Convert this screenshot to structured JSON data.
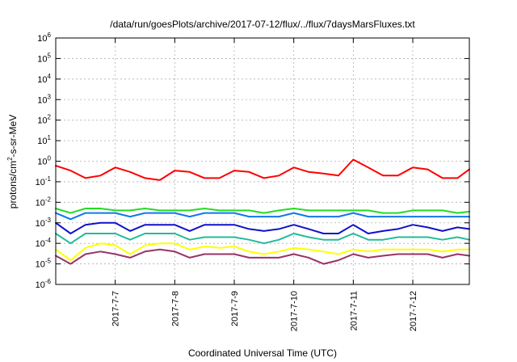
{
  "chart_data": {
    "type": "line",
    "title": "/data/run/goesPlots/archive/2017-07-12/flux/../flux/7daysMarsFluxes.txt",
    "xlabel": "Coordinated Universal Time (UTC)",
    "ylabel": {
      "base": "protons/cm",
      "sup": "2",
      "rest": "-s-sr-MeV"
    },
    "yscale": "log",
    "ylim_exp": [
      -6,
      6
    ],
    "y_tick_exponents": [
      6,
      5,
      4,
      3,
      2,
      1,
      0,
      -1,
      -2,
      -3,
      -4,
      -5,
      -6
    ],
    "y_tick_base": "10",
    "xlim": [
      "2017-07-06 00:00",
      "2017-07-12 23:00"
    ],
    "x_ticks": [
      {
        "label": "2017-7-7",
        "t": 1
      },
      {
        "label": "2017-7-8",
        "t": 2
      },
      {
        "label": "2017-7-9",
        "t": 3
      },
      {
        "label": "2017-7-10",
        "t": 4
      },
      {
        "label": "2017-7-11",
        "t": 5
      },
      {
        "label": "2017-7-12",
        "t": 6
      }
    ],
    "x_range_days": [
      0,
      6.95
    ],
    "grid": true,
    "legend": "none",
    "x_values_days": [
      0,
      0.25,
      0.5,
      0.75,
      1.0,
      1.25,
      1.5,
      1.75,
      2.0,
      2.25,
      2.5,
      2.75,
      3.0,
      3.25,
      3.5,
      3.75,
      4.0,
      4.25,
      4.5,
      4.75,
      5.0,
      5.25,
      5.5,
      5.75,
      6.0,
      6.25,
      6.5,
      6.75,
      6.95
    ],
    "series": [
      {
        "color": "#ff0000",
        "values": [
          0.6,
          0.35,
          0.15,
          0.2,
          0.5,
          0.3,
          0.15,
          0.12,
          0.35,
          0.3,
          0.15,
          0.15,
          0.35,
          0.3,
          0.15,
          0.2,
          0.5,
          0.3,
          0.25,
          0.2,
          1.2,
          0.5,
          0.2,
          0.2,
          0.5,
          0.4,
          0.15,
          0.15,
          0.4
        ]
      },
      {
        "color": "#22dd22",
        "values": [
          0.005,
          0.003,
          0.005,
          0.005,
          0.004,
          0.004,
          0.005,
          0.004,
          0.004,
          0.004,
          0.005,
          0.004,
          0.004,
          0.004,
          0.003,
          0.004,
          0.005,
          0.004,
          0.004,
          0.004,
          0.004,
          0.004,
          0.003,
          0.003,
          0.004,
          0.004,
          0.004,
          0.003,
          0.0035
        ]
      },
      {
        "color": "#1177ee",
        "values": [
          0.003,
          0.0015,
          0.003,
          0.003,
          0.003,
          0.002,
          0.003,
          0.003,
          0.003,
          0.002,
          0.003,
          0.003,
          0.003,
          0.002,
          0.002,
          0.002,
          0.003,
          0.002,
          0.002,
          0.002,
          0.003,
          0.002,
          0.002,
          0.002,
          0.002,
          0.002,
          0.002,
          0.002,
          0.002
        ]
      },
      {
        "color": "#1111cc",
        "values": [
          0.001,
          0.0003,
          0.0008,
          0.001,
          0.001,
          0.0004,
          0.0008,
          0.0008,
          0.0008,
          0.0004,
          0.0008,
          0.0008,
          0.0008,
          0.0005,
          0.0004,
          0.0005,
          0.0008,
          0.0005,
          0.0003,
          0.0003,
          0.0008,
          0.0003,
          0.0004,
          0.0005,
          0.0008,
          0.0006,
          0.0004,
          0.0006,
          0.0005
        ]
      },
      {
        "color": "#22bb99",
        "values": [
          0.0003,
          0.0001,
          0.0003,
          0.0003,
          0.0003,
          0.00015,
          0.0003,
          0.0003,
          0.0003,
          0.00015,
          0.0002,
          0.0002,
          0.0002,
          0.00015,
          0.0001,
          0.00015,
          0.0003,
          0.0002,
          0.00015,
          0.00015,
          0.0003,
          0.00015,
          0.00015,
          0.0002,
          0.0002,
          0.0002,
          0.00015,
          0.0002,
          0.00015
        ]
      },
      {
        "color": "#ffff00",
        "values": [
          5e-05,
          1.5e-05,
          6e-05,
          0.0001,
          8e-05,
          3e-05,
          8e-05,
          0.0001,
          0.0001,
          5e-05,
          7e-05,
          6e-05,
          7e-05,
          4e-05,
          3e-05,
          4e-05,
          6e-05,
          5e-05,
          4e-05,
          3e-05,
          5e-05,
          4e-05,
          5e-05,
          5e-05,
          5e-05,
          5e-05,
          4e-05,
          5e-05,
          5e-05
        ]
      },
      {
        "color": "#993366",
        "values": [
          2.5e-05,
          1e-05,
          3e-05,
          4e-05,
          3e-05,
          2e-05,
          4e-05,
          5e-05,
          4e-05,
          2e-05,
          3e-05,
          3e-05,
          3e-05,
          2e-05,
          2e-05,
          2e-05,
          3e-05,
          2e-05,
          1e-05,
          1.5e-05,
          3e-05,
          2e-05,
          2.5e-05,
          3e-05,
          3e-05,
          3e-05,
          2e-05,
          3e-05,
          2.5e-05
        ]
      }
    ]
  }
}
